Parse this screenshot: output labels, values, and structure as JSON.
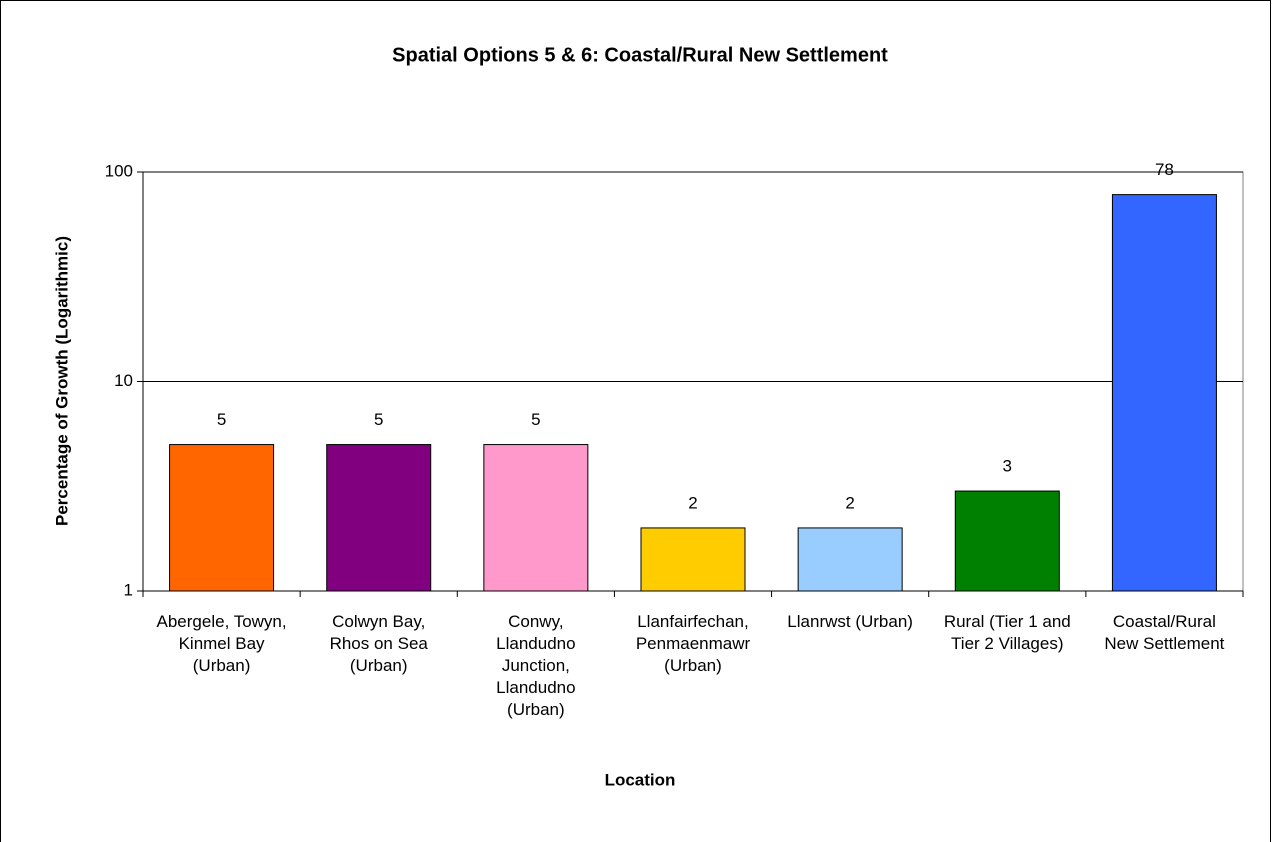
{
  "chart_data": {
    "type": "bar",
    "title": "Spatial Options 5 & 6: Coastal/Rural New Settlement",
    "x_label": "Location",
    "y_label": "Percentage of Growth (Logarithmic)",
    "categories": [
      "Abergele, Towyn, Kinmel Bay (Urban)",
      "Colwyn Bay, Rhos on Sea (Urban)",
      "Conwy, Llandudno Junction, Llandudno (Urban)",
      "Llanfairfechan, Penmaenmawr (Urban)",
      "Llanrwst (Urban)",
      "Rural (Tier 1 and Tier 2 Villages)",
      "Coastal/Rural New Settlement"
    ],
    "values": [
      5,
      5,
      5,
      2,
      2,
      3,
      78
    ],
    "colors": [
      "#ff6600",
      "#800080",
      "#ff99cc",
      "#ffcc00",
      "#99ccff",
      "#008000",
      "#3366ff"
    ],
    "log_scale": true,
    "ylim": [
      1,
      100
    ],
    "yticks": [
      1,
      10,
      100
    ],
    "grid": true
  }
}
